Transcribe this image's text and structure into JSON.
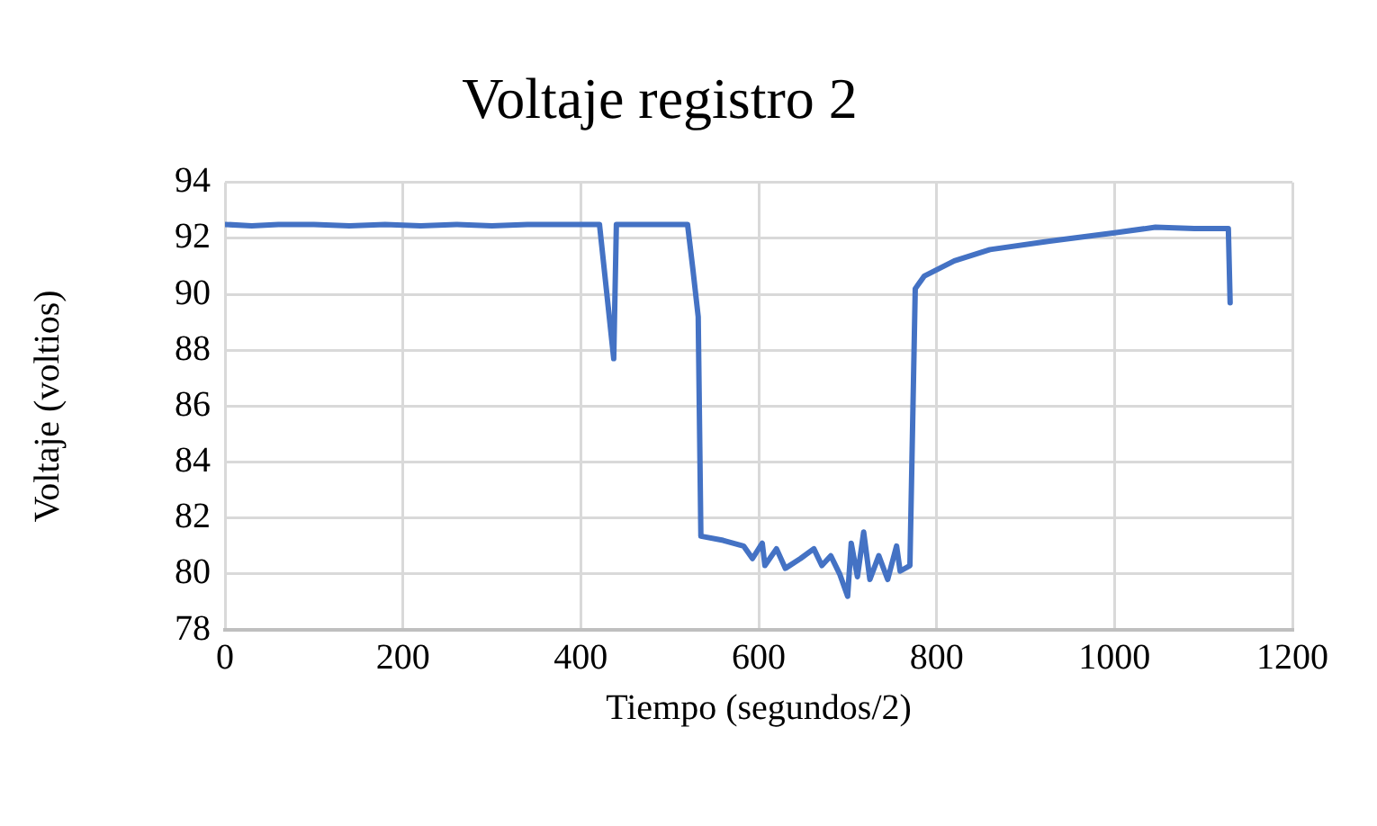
{
  "chart_data": {
    "type": "line",
    "title": "Voltaje registro 2",
    "xlabel": "Tiempo (segundos/2)",
    "ylabel": "Voltaje (voltios)",
    "x": [
      0,
      30,
      60,
      100,
      140,
      180,
      220,
      260,
      300,
      340,
      380,
      421,
      437,
      440,
      480,
      520,
      526,
      532,
      535,
      560,
      583,
      593,
      604,
      607,
      620,
      630,
      647,
      662,
      671,
      681,
      691,
      700,
      704,
      711,
      718,
      725,
      735,
      745,
      755,
      759,
      770,
      776,
      786,
      820,
      860,
      927,
      1000,
      1046,
      1090,
      1128,
      1130
    ],
    "series": [
      {
        "color": "#4472c4",
        "values": [
          92.5,
          92.45,
          92.5,
          92.5,
          92.45,
          92.5,
          92.45,
          92.5,
          92.45,
          92.5,
          92.5,
          92.5,
          87.7,
          92.5,
          92.5,
          92.5,
          90.9,
          89.2,
          81.35,
          81.2,
          81.0,
          80.55,
          81.1,
          80.3,
          80.9,
          80.2,
          80.55,
          80.9,
          80.3,
          80.65,
          80.0,
          79.2,
          81.1,
          79.9,
          81.5,
          79.8,
          80.65,
          79.8,
          81.0,
          80.1,
          80.3,
          90.2,
          90.65,
          91.2,
          91.6,
          91.9,
          92.2,
          92.4,
          92.35,
          92.35,
          89.7
        ]
      }
    ],
    "xlim": [
      0,
      1200
    ],
    "xticks": [
      0,
      200,
      400,
      600,
      800,
      1000,
      1200
    ],
    "ylim": [
      78,
      94
    ],
    "yticks": [
      78,
      80,
      82,
      84,
      86,
      88,
      90,
      92,
      94
    ],
    "grid": true,
    "legend": false,
    "marker": "none",
    "line_style": "solid"
  }
}
